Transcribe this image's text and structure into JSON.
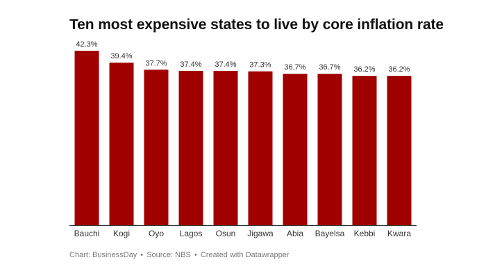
{
  "chart_data": {
    "type": "bar",
    "title": "Ten most expensive states to live by core inflation rate",
    "categories": [
      "Bauchi",
      "Kogi",
      "Oyo",
      "Lagos",
      "Osun",
      "Jigawa",
      "Abia",
      "Bayelsa",
      "Kebbi",
      "Kwara"
    ],
    "values": [
      42.3,
      39.4,
      37.7,
      37.4,
      37.4,
      37.3,
      36.7,
      36.7,
      36.2,
      36.2
    ],
    "value_labels": [
      "42.3%",
      "39.4%",
      "37.7%",
      "37.4%",
      "37.4%",
      "37.3%",
      "36.7%",
      "36.7%",
      "36.2%",
      "36.2%"
    ],
    "xlabel": "",
    "ylabel": "",
    "ylim": [
      0,
      42.3
    ],
    "grid": false,
    "bar_color": "#a00000"
  },
  "footer": {
    "chart_by": "Chart: BusinessDay",
    "source": "Source: NBS",
    "created_with": "Created with Datawrapper",
    "separator": "•"
  }
}
